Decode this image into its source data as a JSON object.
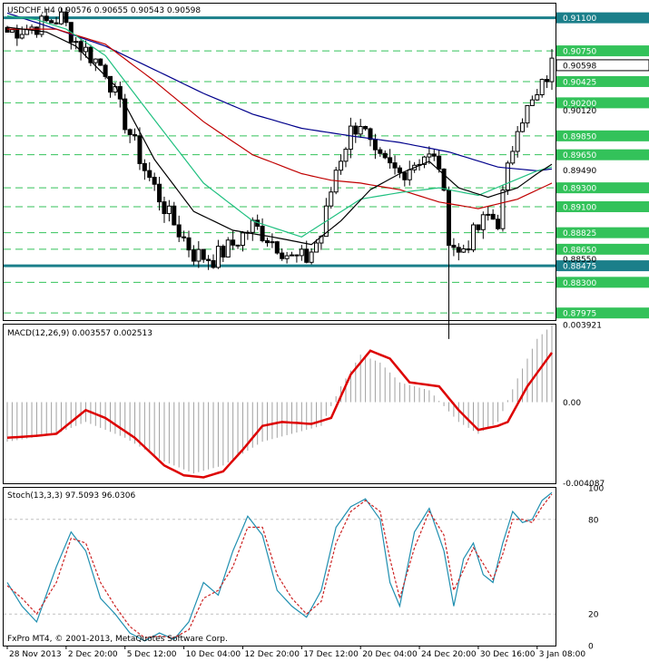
{
  "main": {
    "header": "USDCHF,H4  0.90576 0.90655 0.90543 0.90598",
    "ylim": [
      0.879,
      0.9125
    ],
    "horizontal_levels": [
      {
        "value": 0.911,
        "label": "0.91100",
        "style": "solid",
        "color": "#1b7f8a"
      },
      {
        "value": 0.88475,
        "label": "0.88475",
        "style": "solid",
        "color": "#1b7f8a"
      },
      {
        "value": 0.9075,
        "label": "0.90750",
        "style": "dashed",
        "color": "#33c25a"
      },
      {
        "value": 0.90425,
        "label": "0.90425",
        "style": "dashed",
        "color": "#33c25a"
      },
      {
        "value": 0.902,
        "label": "0.90200",
        "style": "dashed",
        "color": "#33c25a"
      },
      {
        "value": 0.8985,
        "label": "0.89850",
        "style": "dashed",
        "color": "#33c25a"
      },
      {
        "value": 0.8965,
        "label": "0.89650",
        "style": "dashed",
        "color": "#33c25a"
      },
      {
        "value": 0.893,
        "label": "0.89300",
        "style": "dashed",
        "color": "#33c25a"
      },
      {
        "value": 0.891,
        "label": "0.89100",
        "style": "dashed",
        "color": "#33c25a"
      },
      {
        "value": 0.88825,
        "label": "0.88825",
        "style": "dashed",
        "color": "#33c25a"
      },
      {
        "value": 0.8865,
        "label": "0.88650",
        "style": "dashed",
        "color": "#33c25a"
      },
      {
        "value": 0.883,
        "label": "0.88300",
        "style": "dashed",
        "color": "#33c25a"
      },
      {
        "value": 0.87975,
        "label": "0.87975",
        "style": "dashed",
        "color": "#33c25a"
      }
    ],
    "plain_ticks": [
      "0.90120",
      "0.89490",
      "0.88550"
    ],
    "plain_tick_values": [
      0.9012,
      0.8949,
      0.8855
    ],
    "current_price": {
      "value": 0.90598,
      "label": "0.90598"
    }
  },
  "chart_data": [
    {
      "type": "line",
      "title": "USDCHF,H4",
      "x_tick_labels": [
        "28 Nov 2013",
        "2 Dec 20:00",
        "5 Dec 12:00",
        "10 Dec 04:00",
        "12 Dec 20:00",
        "17 Dec 12:00",
        "20 Dec 04:00",
        "24 Dec 20:00",
        "30 Dec 16:00",
        "3 Jan 08:00"
      ],
      "x_tick_index": [
        0,
        12,
        24,
        36,
        48,
        60,
        72,
        84,
        96,
        108
      ],
      "price_anchors": [
        [
          0,
          0.9095
        ],
        [
          5,
          0.91
        ],
        [
          11,
          0.911
        ],
        [
          14,
          0.9085
        ],
        [
          20,
          0.9055
        ],
        [
          24,
          0.9
        ],
        [
          28,
          0.895
        ],
        [
          33,
          0.89
        ],
        [
          38,
          0.886
        ],
        [
          42,
          0.8855
        ],
        [
          46,
          0.887
        ],
        [
          50,
          0.889
        ],
        [
          55,
          0.887
        ],
        [
          58,
          0.8855
        ],
        [
          61,
          0.8855
        ],
        [
          64,
          0.888
        ],
        [
          67,
          0.895
        ],
        [
          70,
          0.899
        ],
        [
          72,
          0.9
        ],
        [
          75,
          0.896
        ],
        [
          80,
          0.8945
        ],
        [
          85,
          0.8965
        ],
        [
          88,
          0.8955
        ],
        [
          90,
          0.888
        ],
        [
          92,
          0.886
        ],
        [
          95,
          0.888
        ],
        [
          98,
          0.89
        ],
        [
          100,
          0.8895
        ],
        [
          104,
          0.9
        ],
        [
          108,
          0.9025
        ],
        [
          111,
          0.906
        ]
      ],
      "series": [
        {
          "name": "",
          "color": "#00008b",
          "values": [
            [
              0,
              0.9115
            ],
            [
              10,
              0.9098
            ],
            [
              20,
              0.908
            ],
            [
              30,
              0.9055
            ],
            [
              40,
              0.903
            ],
            [
              50,
              0.9008
            ],
            [
              60,
              0.8993
            ],
            [
              70,
              0.8985
            ],
            [
              80,
              0.8978
            ],
            [
              90,
              0.8968
            ],
            [
              100,
              0.8952
            ],
            [
              108,
              0.8948
            ],
            [
              111,
              0.895
            ]
          ]
        },
        {
          "name": "",
          "color": "#c00000",
          "values": [
            [
              0,
              0.9098
            ],
            [
              10,
              0.9098
            ],
            [
              20,
              0.9082
            ],
            [
              30,
              0.9043
            ],
            [
              40,
              0.9
            ],
            [
              50,
              0.8965
            ],
            [
              60,
              0.8945
            ],
            [
              66,
              0.8938
            ],
            [
              72,
              0.8935
            ],
            [
              80,
              0.8928
            ],
            [
              88,
              0.8915
            ],
            [
              96,
              0.8908
            ],
            [
              104,
              0.8918
            ],
            [
              111,
              0.8935
            ]
          ]
        },
        {
          "name": "",
          "color": "#20c080",
          "values": [
            [
              0,
              0.9112
            ],
            [
              6,
              0.9108
            ],
            [
              12,
              0.9098
            ],
            [
              20,
              0.907
            ],
            [
              30,
              0.9002
            ],
            [
              40,
              0.8935
            ],
            [
              50,
              0.8895
            ],
            [
              60,
              0.8878
            ],
            [
              66,
              0.8898
            ],
            [
              72,
              0.8918
            ],
            [
              80,
              0.8925
            ],
            [
              88,
              0.893
            ],
            [
              96,
              0.8922
            ],
            [
              102,
              0.8935
            ],
            [
              108,
              0.8948
            ],
            [
              111,
              0.8952
            ]
          ]
        },
        {
          "name": "",
          "color": "#000000",
          "values": [
            [
              0,
              0.91
            ],
            [
              8,
              0.9095
            ],
            [
              14,
              0.908
            ],
            [
              22,
              0.9038
            ],
            [
              30,
              0.896
            ],
            [
              38,
              0.8905
            ],
            [
              46,
              0.8885
            ],
            [
              54,
              0.8878
            ],
            [
              62,
              0.887
            ],
            [
              68,
              0.8895
            ],
            [
              74,
              0.8928
            ],
            [
              80,
              0.8945
            ],
            [
              86,
              0.8958
            ],
            [
              92,
              0.893
            ],
            [
              98,
              0.892
            ],
            [
              104,
              0.893
            ],
            [
              108,
              0.8945
            ],
            [
              111,
              0.8955
            ]
          ]
        }
      ],
      "ylim": [
        0.879,
        0.9125
      ]
    },
    {
      "type": "line",
      "title": "MACD(12,26,9) 0.003557 0.002513",
      "ylim": [
        -0.0041,
        0.00392
      ],
      "tick_labels": [
        "0.003921",
        "0.00",
        "-0.004087"
      ],
      "tick_values": [
        0.003921,
        0.0,
        -0.004087
      ],
      "histogram_anchors": [
        [
          0,
          -0.002
        ],
        [
          10,
          -0.0016
        ],
        [
          16,
          -0.001
        ],
        [
          24,
          -0.0018
        ],
        [
          32,
          -0.003
        ],
        [
          38,
          -0.0036
        ],
        [
          44,
          -0.0032
        ],
        [
          52,
          -0.002
        ],
        [
          58,
          -0.0016
        ],
        [
          64,
          -0.0012
        ],
        [
          68,
          0.0008
        ],
        [
          72,
          0.0024
        ],
        [
          76,
          0.002
        ],
        [
          80,
          0.001
        ],
        [
          86,
          0.0006
        ],
        [
          92,
          -0.001
        ],
        [
          96,
          -0.0016
        ],
        [
          100,
          -0.001
        ],
        [
          104,
          0.0012
        ],
        [
          108,
          0.0032
        ],
        [
          111,
          0.0039
        ]
      ],
      "series": [
        {
          "name": "",
          "color": "#dd0000",
          "values": [
            [
              0,
              -0.0018
            ],
            [
              6,
              -0.0017
            ],
            [
              10,
              -0.0016
            ],
            [
              16,
              -0.0004
            ],
            [
              20,
              -0.0008
            ],
            [
              26,
              -0.0018
            ],
            [
              32,
              -0.0032
            ],
            [
              36,
              -0.0037
            ],
            [
              40,
              -0.0038
            ],
            [
              44,
              -0.0035
            ],
            [
              48,
              -0.0024
            ],
            [
              52,
              -0.0012
            ],
            [
              56,
              -0.001
            ],
            [
              62,
              -0.0011
            ],
            [
              66,
              -0.0008
            ],
            [
              70,
              0.0014
            ],
            [
              74,
              0.0026
            ],
            [
              78,
              0.0022
            ],
            [
              82,
              0.001
            ],
            [
              88,
              0.0008
            ],
            [
              92,
              -0.0004
            ],
            [
              96,
              -0.0014
            ],
            [
              100,
              -0.0012
            ],
            [
              102,
              -0.001
            ],
            [
              106,
              0.0008
            ],
            [
              111,
              0.0025
            ]
          ]
        }
      ]
    },
    {
      "type": "line",
      "title": "Stoch(13,3,3) 97.5093 96.0306",
      "ylim": [
        0,
        100
      ],
      "tick_labels": [
        "100",
        "80",
        "20",
        "0"
      ],
      "tick_values": [
        100,
        80,
        20,
        0
      ],
      "series": [
        {
          "name": "",
          "color": "#1f8fb0",
          "values": [
            [
              0,
              40
            ],
            [
              3,
              25
            ],
            [
              6,
              15
            ],
            [
              10,
              50
            ],
            [
              13,
              72
            ],
            [
              16,
              60
            ],
            [
              19,
              30
            ],
            [
              22,
              20
            ],
            [
              25,
              8
            ],
            [
              28,
              3
            ],
            [
              31,
              8
            ],
            [
              34,
              4
            ],
            [
              37,
              15
            ],
            [
              40,
              40
            ],
            [
              43,
              32
            ],
            [
              46,
              60
            ],
            [
              49,
              82
            ],
            [
              52,
              70
            ],
            [
              55,
              35
            ],
            [
              58,
              25
            ],
            [
              61,
              18
            ],
            [
              64,
              35
            ],
            [
              67,
              75
            ],
            [
              70,
              88
            ],
            [
              73,
              93
            ],
            [
              76,
              80
            ],
            [
              78,
              40
            ],
            [
              80,
              25
            ],
            [
              83,
              72
            ],
            [
              86,
              87
            ],
            [
              89,
              60
            ],
            [
              91,
              25
            ],
            [
              93,
              55
            ],
            [
              95,
              65
            ],
            [
              97,
              45
            ],
            [
              99,
              40
            ],
            [
              101,
              65
            ],
            [
              103,
              85
            ],
            [
              105,
              78
            ],
            [
              107,
              80
            ],
            [
              109,
              92
            ],
            [
              111,
              97
            ]
          ]
        },
        {
          "name": "",
          "color": "#cc2222",
          "values": [
            [
              0,
              38
            ],
            [
              3,
              30
            ],
            [
              6,
              20
            ],
            [
              10,
              40
            ],
            [
              13,
              68
            ],
            [
              16,
              65
            ],
            [
              19,
              40
            ],
            [
              22,
              25
            ],
            [
              25,
              12
            ],
            [
              28,
              5
            ],
            [
              31,
              6
            ],
            [
              34,
              5
            ],
            [
              37,
              10
            ],
            [
              40,
              30
            ],
            [
              43,
              35
            ],
            [
              46,
              50
            ],
            [
              49,
              75
            ],
            [
              52,
              75
            ],
            [
              55,
              45
            ],
            [
              58,
              30
            ],
            [
              61,
              20
            ],
            [
              64,
              28
            ],
            [
              67,
              65
            ],
            [
              70,
              85
            ],
            [
              73,
              92
            ],
            [
              76,
              85
            ],
            [
              78,
              55
            ],
            [
              80,
              30
            ],
            [
              83,
              62
            ],
            [
              86,
              85
            ],
            [
              89,
              70
            ],
            [
              91,
              35
            ],
            [
              93,
              48
            ],
            [
              95,
              62
            ],
            [
              97,
              52
            ],
            [
              99,
              42
            ],
            [
              101,
              58
            ],
            [
              103,
              80
            ],
            [
              105,
              80
            ],
            [
              107,
              78
            ],
            [
              109,
              88
            ],
            [
              111,
              96
            ]
          ]
        }
      ]
    }
  ],
  "footer": {
    "copyright": "FxPro MT4, © 2001-2013, MetaQuotes Software Corp."
  }
}
